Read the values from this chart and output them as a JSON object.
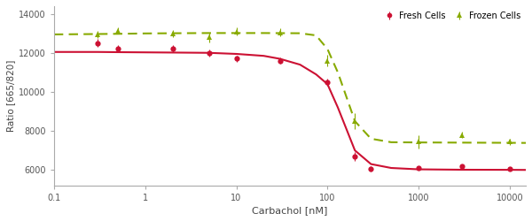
{
  "title": "",
  "xlabel": "Carbachol [nM]",
  "ylabel": "Ratio [665/820]",
  "xlim": [
    0.1,
    15000
  ],
  "ylim": [
    5200,
    14400
  ],
  "yticks": [
    6000,
    8000,
    10000,
    12000,
    14000
  ],
  "xticks": [
    0.1,
    1,
    10,
    100,
    1000,
    10000
  ],
  "xtick_labels": [
    "0.1",
    "1",
    "10",
    "100",
    "1000",
    "10000"
  ],
  "fresh_x": [
    0.3,
    0.5,
    2,
    5,
    10,
    30,
    100,
    200,
    300,
    1000,
    3000,
    10000
  ],
  "fresh_y": [
    12500,
    12200,
    12200,
    12000,
    11700,
    11600,
    10500,
    6700,
    6050,
    6100,
    6200,
    6050
  ],
  "fresh_yerr": [
    200,
    180,
    180,
    180,
    170,
    160,
    200,
    220,
    150,
    100,
    100,
    90
  ],
  "fresh_color": "#cc1133",
  "fresh_marker": "o",
  "fresh_label": "Fresh Cells",
  "frozen_x": [
    0.3,
    0.5,
    2,
    5,
    10,
    30,
    100,
    200,
    1000,
    3000,
    10000
  ],
  "frozen_y": [
    12950,
    13150,
    13000,
    12800,
    13100,
    13050,
    11600,
    8500,
    7450,
    7800,
    7450
  ],
  "frozen_yerr": [
    200,
    180,
    180,
    250,
    200,
    200,
    300,
    400,
    350,
    180,
    150
  ],
  "frozen_color": "#88aa00",
  "frozen_marker": "^",
  "frozen_label": "Frozen Cells",
  "fresh_fit_x": [
    0.1,
    0.3,
    0.5,
    1,
    2,
    5,
    10,
    20,
    30,
    50,
    75,
    100,
    130,
    200,
    300,
    500,
    1000,
    3000,
    10000,
    15000
  ],
  "fresh_fit_y": [
    12050,
    12050,
    12040,
    12030,
    12020,
    12005,
    11950,
    11850,
    11700,
    11400,
    10900,
    10400,
    9200,
    7000,
    6300,
    6100,
    6030,
    6010,
    6005,
    6000
  ],
  "frozen_fit_x": [
    0.1,
    0.3,
    0.5,
    1,
    2,
    5,
    10,
    20,
    30,
    50,
    75,
    100,
    130,
    200,
    300,
    500,
    1000,
    3000,
    10000,
    15000
  ],
  "frozen_fit_y": [
    12950,
    12970,
    12980,
    13000,
    13010,
    13020,
    13020,
    13020,
    13015,
    13010,
    12900,
    12200,
    11000,
    8500,
    7600,
    7420,
    7410,
    7400,
    7390,
    7385
  ],
  "legend_loc": "upper right",
  "background_color": "#ffffff",
  "axes_color": "#aaaaaa",
  "grid": false
}
